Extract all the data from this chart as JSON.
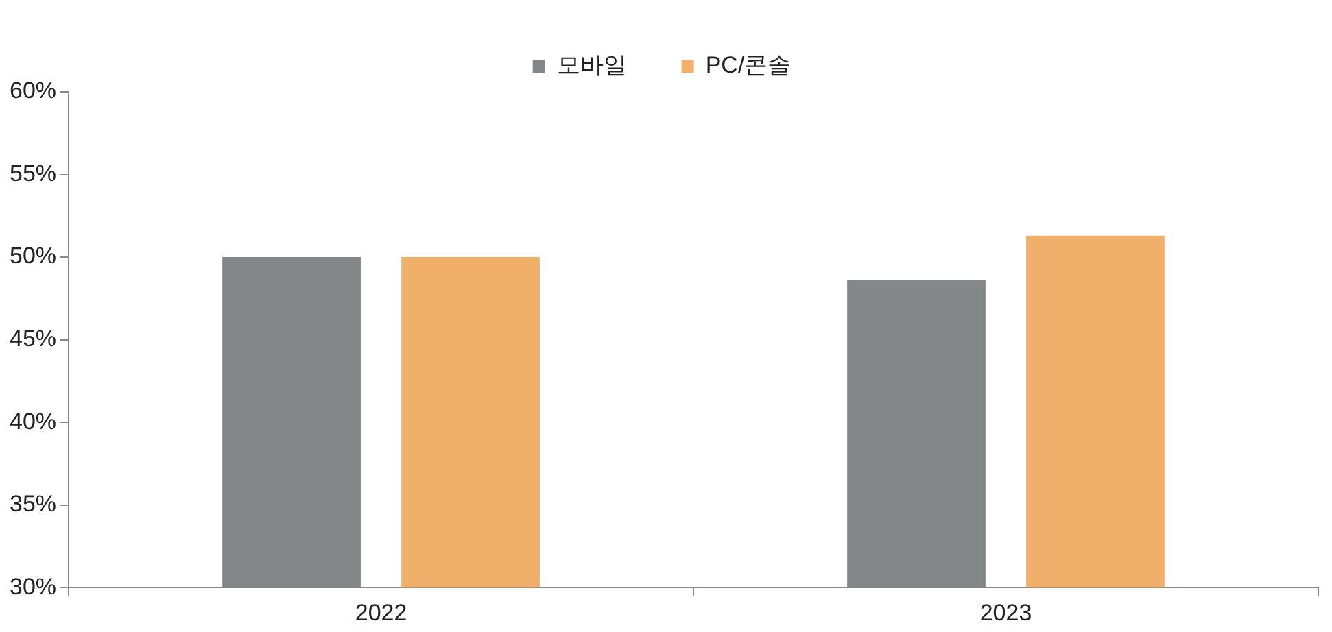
{
  "chart_data": {
    "type": "bar",
    "categories": [
      "2022",
      "2023"
    ],
    "series": [
      {
        "name": "모바일",
        "color": "#848789",
        "values": [
          50,
          48.6
        ]
      },
      {
        "name": "PC/콘솔",
        "color": "#f0b06b",
        "values": [
          50,
          51.3
        ]
      }
    ],
    "ylim": [
      30,
      60
    ],
    "yticks": [
      {
        "value": 30,
        "label": "30%"
      },
      {
        "value": 35,
        "label": "35%"
      },
      {
        "value": 40,
        "label": "40%"
      },
      {
        "value": 45,
        "label": "45%"
      },
      {
        "value": 50,
        "label": "50%"
      },
      {
        "value": 55,
        "label": "55%"
      },
      {
        "value": 60,
        "label": "60%"
      }
    ],
    "grid": false,
    "legend": "top"
  }
}
